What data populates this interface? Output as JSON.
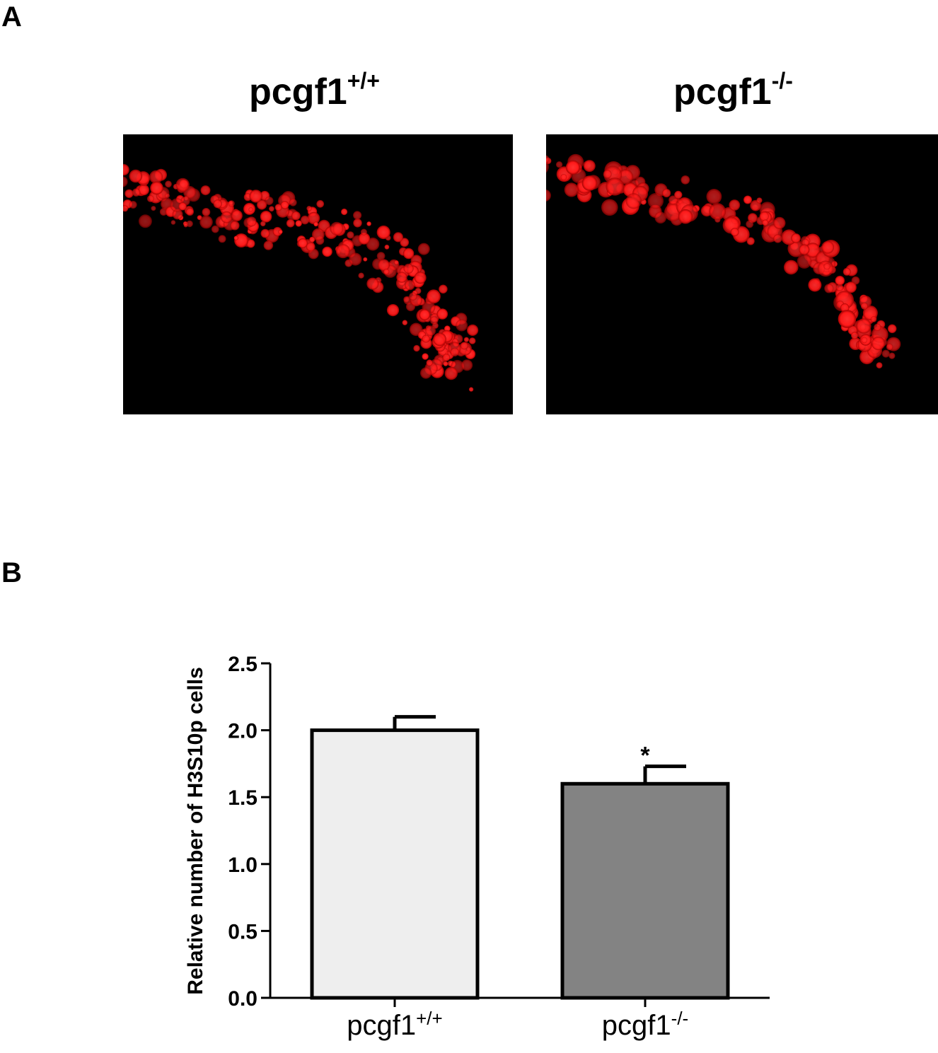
{
  "panels": {
    "a": {
      "letter": "A"
    },
    "b": {
      "letter": "B"
    }
  },
  "micrographs": [
    {
      "title_main": "pcgf1",
      "title_sup": "+/+"
    },
    {
      "title_main": "pcgf1",
      "title_sup": "-/-"
    }
  ],
  "colors": {
    "stain": "#ff1a1a",
    "background": "#000000",
    "bar_wt": "#eeeeee",
    "bar_ko": "#838383"
  },
  "chart_data": {
    "type": "bar",
    "categories": [
      {
        "main": "pcgf1",
        "sup": "+/+"
      },
      {
        "main": "pcgf1",
        "sup": "-/-"
      }
    ],
    "values": [
      2.0,
      1.6
    ],
    "errors": [
      0.1,
      0.13
    ],
    "annotations": [
      "",
      "*"
    ],
    "ylabel": "Relative number of H3S10p cells",
    "ylim": [
      0,
      2.5
    ],
    "yticks": [
      0.0,
      0.5,
      1.0,
      1.5,
      2.0,
      2.5
    ],
    "ytick_labels": [
      "0.0",
      "0.5",
      "1.0",
      "1.5",
      "2.0",
      "2.5"
    ],
    "grid": false
  }
}
